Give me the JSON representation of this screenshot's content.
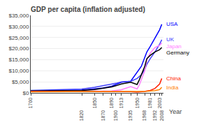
{
  "chart_data": {
    "type": "line",
    "title": "GDP per capita (inflation adjusted)",
    "xlabel": "Year",
    "xlim": [
      1700,
      2012
    ],
    "xticks": [
      1700,
      1820,
      1850,
      1870,
      1890,
      1900,
      1913,
      1935,
      1950,
      1968,
      1981,
      1992,
      2003,
      2008
    ],
    "ylim": [
      0,
      35000
    ],
    "yticks": [
      {
        "value": 0,
        "label": "$0"
      },
      {
        "value": 5000,
        "label": "$5,000"
      },
      {
        "value": 10000,
        "label": "$10,000"
      },
      {
        "value": 15000,
        "label": "$15,000"
      },
      {
        "value": 20000,
        "label": "$20,000"
      },
      {
        "value": 25000,
        "label": "$25,000"
      },
      {
        "value": 30000,
        "label": "$30,000"
      },
      {
        "value": 35000,
        "label": "$35,000"
      }
    ],
    "grid": "y",
    "series": [
      {
        "name": "USA",
        "color": "#0000ff",
        "x": [
          1700,
          1820,
          1850,
          1870,
          1890,
          1900,
          1913,
          1935,
          1950,
          1960,
          1968,
          1973,
          1981,
          1992,
          2003,
          2008
        ],
        "values": [
          900,
          1250,
          1800,
          2200,
          3000,
          3800,
          4800,
          5300,
          9400,
          12000,
          16000,
          18500,
          21000,
          25000,
          28500,
          31000
        ]
      },
      {
        "name": "UK",
        "color": "#4040ff",
        "x": [
          1700,
          1820,
          1850,
          1870,
          1890,
          1900,
          1913,
          1935,
          1950,
          1960,
          1968,
          1973,
          1981,
          1992,
          2003,
          2008
        ],
        "values": [
          1100,
          1700,
          2500,
          3200,
          3900,
          4300,
          5000,
          5200,
          6500,
          8200,
          10500,
          13000,
          15500,
          18500,
          22000,
          24000
        ]
      },
      {
        "name": "Japan",
        "color": "#ff80ff",
        "x": [
          1700,
          1820,
          1850,
          1870,
          1890,
          1900,
          1913,
          1935,
          1950,
          1955,
          1968,
          1973,
          1981,
          1992,
          2003,
          2008
        ],
        "values": [
          550,
          650,
          700,
          750,
          900,
          1100,
          1400,
          2800,
          1800,
          3500,
          10000,
          15000,
          18000,
          20500,
          21500,
          22500
        ]
      },
      {
        "name": "Germany",
        "color": "#000000",
        "x": [
          1700,
          1820,
          1850,
          1870,
          1890,
          1900,
          1913,
          1935,
          1950,
          1955,
          1968,
          1973,
          1981,
          1992,
          2003,
          2008
        ],
        "values": [
          900,
          1100,
          1500,
          2000,
          2700,
          3200,
          4000,
          4800,
          3800,
          5800,
          12000,
          15500,
          17000,
          18500,
          19500,
          20500
        ]
      },
      {
        "name": "China",
        "color": "#ff2000",
        "x": [
          1700,
          1820,
          1850,
          1870,
          1890,
          1900,
          1913,
          1935,
          1950,
          1960,
          1968,
          1973,
          1981,
          1992,
          2003,
          2008
        ],
        "values": [
          600,
          650,
          550,
          530,
          500,
          500,
          520,
          520,
          400,
          450,
          650,
          850,
          1100,
          2000,
          4000,
          6500
        ]
      },
      {
        "name": "India",
        "color": "#ff8000",
        "x": [
          1700,
          1820,
          1850,
          1870,
          1890,
          1900,
          1913,
          1935,
          1950,
          1960,
          1968,
          1973,
          1981,
          1992,
          2003,
          2008
        ],
        "values": [
          500,
          530,
          500,
          480,
          470,
          480,
          490,
          490,
          480,
          530,
          600,
          700,
          850,
          1050,
          1500,
          2500
        ]
      }
    ]
  }
}
